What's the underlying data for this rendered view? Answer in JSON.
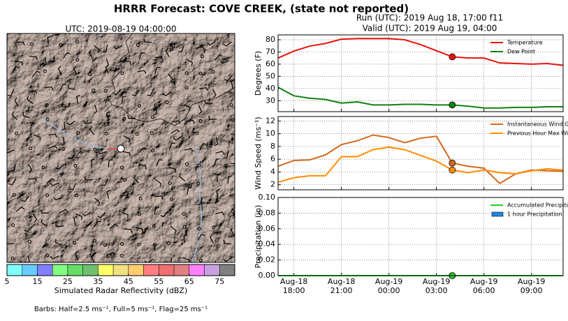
{
  "header": {
    "title": "HRRR Forecast: COVE CREEK, (state not reported)",
    "run": "Run (UTC): 2019 Aug 18, 17:00 f11",
    "valid": "Valid (UTC): 2019 Aug 19, 04:00",
    "note": "Barbs: Half=2.5 ms⁻¹, Full=5 ms⁻¹, Flag=25 ms⁻¹"
  },
  "chart_data": [
    {
      "type": "map",
      "title": "UTC: 2019-08-19 04:00:00"
    },
    {
      "type": "colorbar",
      "xlabel": "Simulated Radar Reflectivity (dBZ)",
      "bins": [
        5,
        10,
        15,
        20,
        25,
        30,
        35,
        40,
        45,
        50,
        55,
        60,
        65,
        70,
        75,
        80
      ],
      "colors": [
        "#80ffff",
        "#66ccff",
        "#8080ff",
        "#80ff80",
        "#66dd66",
        "#70c070",
        "#ffff66",
        "#f0e080",
        "#ffcc70",
        "#ff7f7f",
        "#ee7070",
        "#e08080",
        "#ff80ff",
        "#c8a0e0",
        "#808080"
      ],
      "xlim": [
        5,
        80
      ],
      "xticks": [
        5,
        15,
        25,
        35,
        45,
        55,
        65,
        75
      ]
    },
    {
      "type": "line",
      "ylabel": "Degrees (F)",
      "x": [
        "Aug-18 17:00",
        "Aug-18 18:00",
        "Aug-18 19:00",
        "Aug-18 20:00",
        "Aug-18 21:00",
        "Aug-18 22:00",
        "Aug-18 23:00",
        "Aug-19 00:00",
        "Aug-19 01:00",
        "Aug-19 02:00",
        "Aug-19 03:00",
        "Aug-19 04:00",
        "Aug-19 05:00",
        "Aug-19 06:00",
        "Aug-19 07:00",
        "Aug-19 08:00",
        "Aug-19 09:00",
        "Aug-19 10:00",
        "Aug-19 11:00"
      ],
      "xlim": [
        "Aug-18 17:00",
        "Aug-19 11:00"
      ],
      "xticks": [
        "Aug-18 18:00",
        "Aug-18 21:00",
        "Aug-19 00:00",
        "Aug-19 03:00",
        "Aug-19 06:00",
        "Aug-19 09:00"
      ],
      "ylim": [
        21,
        84
      ],
      "yticks": [
        30,
        40,
        50,
        60,
        70,
        80
      ],
      "grid": true,
      "legend": "upper right",
      "marker_x": "Aug-19 04:00",
      "series": [
        {
          "name": "Temperature",
          "color": "#e8120c",
          "values": [
            65,
            70.7,
            74.8,
            77,
            80.5,
            81,
            81,
            81,
            80,
            76,
            71,
            66,
            65,
            65,
            61,
            60.5,
            60,
            60.5,
            59
          ]
        },
        {
          "name": "Dew Point",
          "color": "#118011",
          "values": [
            41,
            34,
            32,
            31,
            28,
            29,
            26.5,
            26.5,
            27,
            27,
            26.5,
            26.5,
            25.5,
            24,
            24,
            24.5,
            24.5,
            25,
            25
          ]
        }
      ]
    },
    {
      "type": "line",
      "ylabel": "Wind Speed (ms⁻¹)",
      "x": [
        "Aug-18 17:00",
        "Aug-18 18:00",
        "Aug-18 19:00",
        "Aug-18 20:00",
        "Aug-18 21:00",
        "Aug-18 22:00",
        "Aug-18 23:00",
        "Aug-19 00:00",
        "Aug-19 01:00",
        "Aug-19 02:00",
        "Aug-19 03:00",
        "Aug-19 04:00",
        "Aug-19 05:00",
        "Aug-19 06:00",
        "Aug-19 07:00",
        "Aug-19 08:00",
        "Aug-19 09:00",
        "Aug-19 10:00",
        "Aug-19 11:00"
      ],
      "xlim": [
        "Aug-18 17:00",
        "Aug-19 11:00"
      ],
      "xticks": [
        "Aug-18 18:00",
        "Aug-18 21:00",
        "Aug-19 00:00",
        "Aug-19 03:00",
        "Aug-19 06:00",
        "Aug-19 09:00"
      ],
      "ylim": [
        1.2,
        12.7
      ],
      "yticks": [
        2,
        4,
        6,
        8,
        10,
        12
      ],
      "grid": true,
      "legend": "upper right",
      "marker_x": "Aug-19 04:00",
      "series": [
        {
          "name": "Instantaneous Wind Gust",
          "color": "#d2691e",
          "values": [
            4.9,
            5.8,
            5.9,
            6.7,
            8.3,
            8.9,
            9.8,
            9.4,
            8.6,
            9.3,
            9.6,
            5.4,
            4.9,
            4.6,
            2.2,
            3.7,
            4.3,
            4.2,
            4.1
          ]
        },
        {
          "name": "Previous Hour Max Wind",
          "color": "#ff8c00",
          "values": [
            2.4,
            3.1,
            3.4,
            3.4,
            6.4,
            6.4,
            7.5,
            7.9,
            7.5,
            6.6,
            5.7,
            4.3,
            3.9,
            4.3,
            3.9,
            3.7,
            4.2,
            4.5,
            4.3
          ]
        }
      ]
    },
    {
      "type": "line",
      "ylabel": "Precipitation (in)",
      "x": [
        "Aug-18 17:00",
        "Aug-18 18:00",
        "Aug-18 19:00",
        "Aug-18 20:00",
        "Aug-18 21:00",
        "Aug-18 22:00",
        "Aug-18 23:00",
        "Aug-19 00:00",
        "Aug-19 01:00",
        "Aug-19 02:00",
        "Aug-19 03:00",
        "Aug-19 04:00",
        "Aug-19 05:00",
        "Aug-19 06:00",
        "Aug-19 07:00",
        "Aug-19 08:00",
        "Aug-19 09:00",
        "Aug-19 10:00",
        "Aug-19 11:00"
      ],
      "xlim": [
        "Aug-18 17:00",
        "Aug-19 11:00"
      ],
      "xticks": [
        "Aug-18 18:00",
        "Aug-18 21:00",
        "Aug-19 00:00",
        "Aug-19 03:00",
        "Aug-19 06:00",
        "Aug-19 09:00"
      ],
      "ylim": [
        0,
        0.1
      ],
      "yticks": [
        {
          "value": 0,
          "label": "0.00"
        },
        {
          "value": 0.02,
          "label": "0.02"
        },
        {
          "value": 0.04,
          "label": "0.04"
        },
        {
          "value": 0.06,
          "label": "0.06"
        },
        {
          "value": 0.08,
          "label": "0.08"
        },
        {
          "value": 0.1,
          "label": "0.10"
        }
      ],
      "grid": true,
      "legend": "upper right",
      "marker_x": "Aug-19 04:00",
      "series": [
        {
          "name": "Accumulated Precipitation",
          "color": "#22cc22",
          "values": [
            0,
            0,
            0,
            0,
            0,
            0,
            0,
            0,
            0,
            0,
            0,
            0,
            0,
            0,
            0,
            0,
            0,
            0,
            0
          ]
        },
        {
          "name": "1 hour Precipitation",
          "type": "bar",
          "color": "#1e88e5",
          "values": [
            0,
            0,
            0,
            0,
            0,
            0,
            0,
            0,
            0,
            0,
            0,
            0,
            0,
            0,
            0,
            0,
            0,
            0,
            0
          ]
        }
      ]
    }
  ]
}
